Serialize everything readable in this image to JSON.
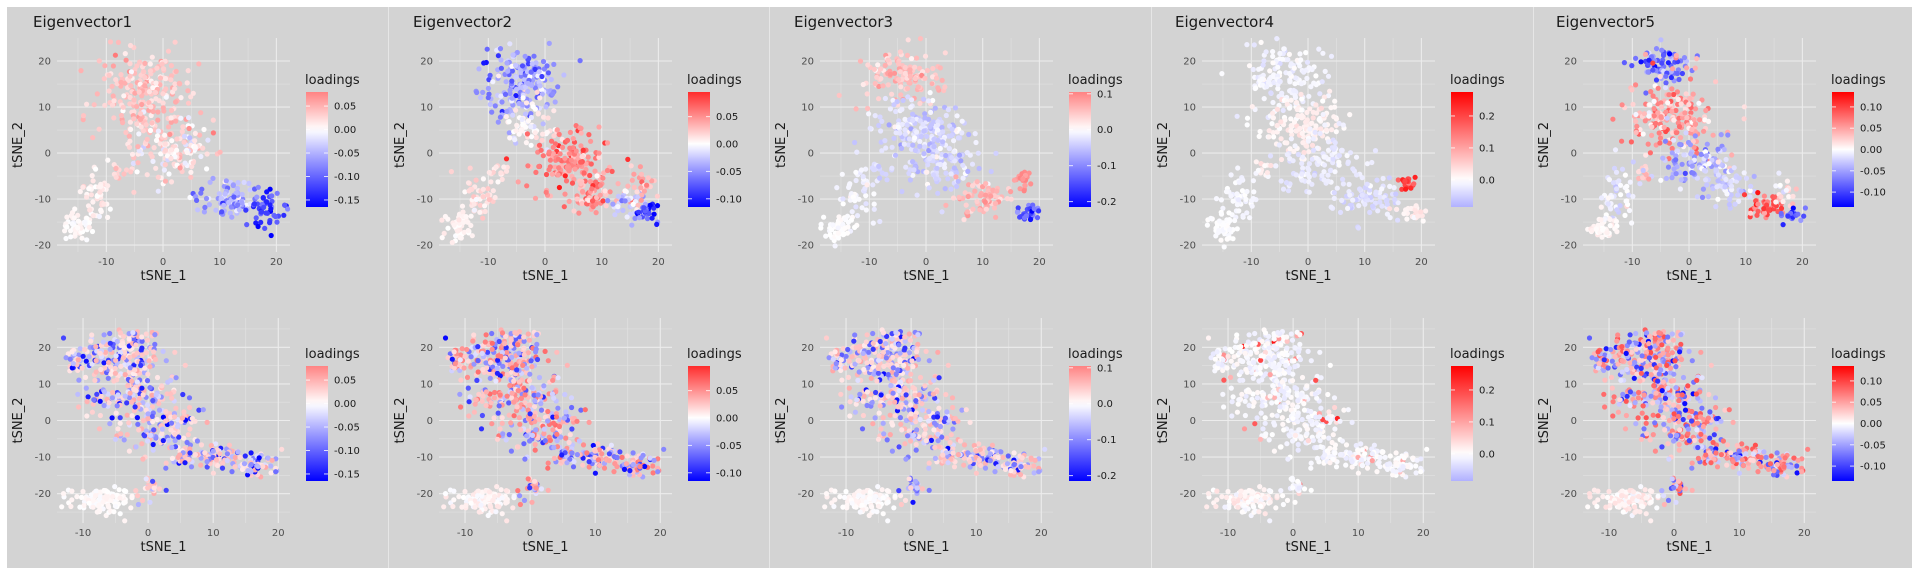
{
  "chart_data": {
    "type": "scatter",
    "layout": "2 rows x 5 columns of faceted tSNE scatter plots",
    "xlabel": "tSNE_1",
    "ylabel": "tSNE_2",
    "legend_title": "loadings",
    "legend_placement": "right",
    "grid": true,
    "color_scale": {
      "low": "#0000ff",
      "mid": "#ffffff",
      "high": "#ff0000"
    },
    "columns": [
      {
        "title": "Eigenvector1",
        "top": {
          "xlim": [
            -18.7,
            22.4
          ],
          "ylim": [
            -21.5,
            25
          ],
          "xticks": [
            -10,
            0,
            10,
            20
          ],
          "yticks": [
            -20,
            -10,
            0,
            10,
            20
          ],
          "xtick_labels": [
            "-10",
            "0",
            "10",
            "20"
          ],
          "ytick_labels": [
            "-20",
            "-10",
            "0",
            "10",
            "20"
          ],
          "legend_range": [
            -0.165,
            0.08
          ],
          "legend_breaks": [
            0.05,
            0.0,
            -0.05,
            -0.1,
            -0.15
          ],
          "legend_labels": [
            "0.05",
            "0.00",
            "-0.05",
            "-0.10",
            "-0.15"
          ],
          "clusters": [
            {
              "cx": -3,
              "cy": 13,
              "sx": 4.5,
              "sy": 5,
              "n": 230,
              "loading": 0.035,
              "spread": 0.015
            },
            {
              "cx": 2,
              "cy": 1,
              "sx": 3.5,
              "sy": 4,
              "n": 150,
              "loading": 0.02,
              "spread": 0.02
            },
            {
              "cx": 12,
              "cy": -10,
              "sx": 3,
              "sy": 2,
              "n": 90,
              "loading": -0.06,
              "spread": 0.03
            },
            {
              "cx": 18,
              "cy": -12,
              "sx": 1.5,
              "sy": 2,
              "n": 45,
              "loading": -0.12,
              "spread": 0.03
            },
            {
              "cx": -8,
              "cy": -4,
              "sx": 0.8,
              "sy": 1,
              "n": 12,
              "loading": 0.03,
              "spread": 0.01
            },
            {
              "cx": -12,
              "cy": -9,
              "sx": 1.5,
              "sy": 3,
              "n": 50,
              "loading": 0.01,
              "spread": 0.008
            },
            {
              "cx": -15,
              "cy": -16,
              "sx": 1.2,
              "sy": 1.5,
              "n": 50,
              "loading": 0.003,
              "spread": 0.004
            }
          ]
        },
        "bottom": {
          "xlim": [
            -14,
            21.8
          ],
          "ylim": [
            -28,
            28
          ],
          "xticks": [
            -10,
            0,
            10,
            20
          ],
          "yticks": [
            -20,
            -10,
            0,
            10,
            20
          ],
          "xtick_labels": [
            "-10",
            "0",
            "10",
            "20"
          ],
          "ytick_labels": [
            "-20",
            "-10",
            "0",
            "10",
            "20"
          ],
          "legend_range": [
            -0.165,
            0.08
          ],
          "legend_breaks": [
            0.05,
            0.0,
            -0.05,
            -0.1,
            -0.15
          ],
          "legend_labels": [
            "0.05",
            "0.00",
            "-0.05",
            "-0.10",
            "-0.15"
          ],
          "pattern": "mixed"
        }
      },
      {
        "title": "Eigenvector2",
        "top": {
          "xlim": [
            -18.7,
            22.4
          ],
          "ylim": [
            -21.5,
            25
          ],
          "xticks": [
            -10,
            0,
            10,
            20
          ],
          "yticks": [
            -20,
            -10,
            0,
            10,
            20
          ],
          "xtick_labels": [
            "-10",
            "0",
            "10",
            "20"
          ],
          "ytick_labels": [
            "-20",
            "-10",
            "0",
            "10",
            "20"
          ],
          "legend_range": [
            -0.115,
            0.095
          ],
          "legend_breaks": [
            0.05,
            0.0,
            -0.05,
            -0.1
          ],
          "legend_labels": [
            "0.05",
            "0.00",
            "-0.05",
            "-0.10"
          ],
          "clusters": [
            {
              "cx": -4,
              "cy": 15,
              "sx": 3.5,
              "sy": 4,
              "n": 200,
              "loading": -0.04,
              "spread": 0.025
            },
            {
              "cx": -3,
              "cy": 5,
              "sx": 3,
              "sy": 2.5,
              "n": 60,
              "loading": 0.005,
              "spread": 0.01
            },
            {
              "cx": 4,
              "cy": -2,
              "sx": 3.5,
              "sy": 3.5,
              "n": 160,
              "loading": 0.055,
              "spread": 0.02
            },
            {
              "cx": 9,
              "cy": -9,
              "sx": 2.5,
              "sy": 2.5,
              "n": 60,
              "loading": 0.045,
              "spread": 0.02
            },
            {
              "cx": 14,
              "cy": -11,
              "sx": 1.5,
              "sy": 1.5,
              "n": 35,
              "loading": -0.02,
              "spread": 0.02
            },
            {
              "cx": 17,
              "cy": -7,
              "sx": 1,
              "sy": 2,
              "n": 25,
              "loading": 0.03,
              "spread": 0.015
            },
            {
              "cx": 18,
              "cy": -13,
              "sx": 1.2,
              "sy": 1,
              "n": 30,
              "loading": -0.08,
              "spread": 0.025
            },
            {
              "cx": -8,
              "cy": -4,
              "sx": 0.8,
              "sy": 1,
              "n": 12,
              "loading": 0.01,
              "spread": 0.008
            },
            {
              "cx": -12,
              "cy": -9,
              "sx": 1.5,
              "sy": 3,
              "n": 50,
              "loading": 0.012,
              "spread": 0.008
            },
            {
              "cx": -15,
              "cy": -16,
              "sx": 1.2,
              "sy": 1.5,
              "n": 50,
              "loading": 0.005,
              "spread": 0.004
            }
          ]
        },
        "bottom": {
          "xlim": [
            -14,
            21.8
          ],
          "ylim": [
            -28,
            28
          ],
          "xticks": [
            -10,
            0,
            10,
            20
          ],
          "yticks": [
            -20,
            -10,
            0,
            10,
            20
          ],
          "xtick_labels": [
            "-10",
            "0",
            "10",
            "20"
          ],
          "ytick_labels": [
            "-20",
            "-10",
            "0",
            "10",
            "20"
          ],
          "legend_range": [
            -0.115,
            0.095
          ],
          "legend_breaks": [
            0.05,
            0.0,
            -0.05,
            -0.1
          ],
          "legend_labels": [
            "0.05",
            "0.00",
            "-0.05",
            "-0.10"
          ],
          "pattern": "mixed"
        }
      },
      {
        "title": "Eigenvector3",
        "top": {
          "xlim": [
            -18.7,
            22.4
          ],
          "ylim": [
            -21.5,
            25
          ],
          "xticks": [
            -10,
            0,
            10,
            20
          ],
          "yticks": [
            -20,
            -10,
            0,
            10,
            20
          ],
          "xtick_labels": [
            "-10",
            "0",
            "10",
            "20"
          ],
          "ytick_labels": [
            "-20",
            "-10",
            "0",
            "10",
            "20"
          ],
          "legend_range": [
            -0.215,
            0.105
          ],
          "legend_breaks": [
            0.1,
            0.0,
            -0.1,
            -0.2
          ],
          "legend_labels": [
            "0.1",
            "0.0",
            "-0.1",
            "-0.2"
          ],
          "clusters": [
            {
              "cx": -4,
              "cy": 17,
              "sx": 3.5,
              "sy": 3,
              "n": 130,
              "loading": 0.05,
              "spread": 0.02
            },
            {
              "cx": -2,
              "cy": 6,
              "sx": 4,
              "sy": 3,
              "n": 150,
              "loading": -0.03,
              "spread": 0.02
            },
            {
              "cx": 2,
              "cy": -2,
              "sx": 3.5,
              "sy": 3.5,
              "n": 130,
              "loading": -0.035,
              "spread": 0.02
            },
            {
              "cx": 10,
              "cy": -10,
              "sx": 2.5,
              "sy": 2,
              "n": 70,
              "loading": 0.06,
              "spread": 0.02
            },
            {
              "cx": 17,
              "cy": -6,
              "sx": 0.8,
              "sy": 1.2,
              "n": 20,
              "loading": 0.09,
              "spread": 0.01
            },
            {
              "cx": 18,
              "cy": -13,
              "sx": 1.2,
              "sy": 1,
              "n": 30,
              "loading": -0.13,
              "spread": 0.04
            },
            {
              "cx": -8,
              "cy": -4,
              "sx": 0.8,
              "sy": 1,
              "n": 12,
              "loading": -0.03,
              "spread": 0.01
            },
            {
              "cx": -12,
              "cy": -9,
              "sx": 1.5,
              "sy": 3,
              "n": 50,
              "loading": -0.01,
              "spread": 0.01
            },
            {
              "cx": -15,
              "cy": -16,
              "sx": 1.2,
              "sy": 1.5,
              "n": 50,
              "loading": 0.0,
              "spread": 0.004
            }
          ]
        },
        "bottom": {
          "xlim": [
            -14,
            21.8
          ],
          "ylim": [
            -28,
            28
          ],
          "xticks": [
            -10,
            0,
            10,
            20
          ],
          "yticks": [
            -20,
            -10,
            0,
            10,
            20
          ],
          "xtick_labels": [
            "-10",
            "0",
            "10",
            "20"
          ],
          "ytick_labels": [
            "-20",
            "-10",
            "0",
            "10",
            "20"
          ],
          "legend_range": [
            -0.215,
            0.105
          ],
          "legend_breaks": [
            0.1,
            0.0,
            -0.1,
            -0.2
          ],
          "legend_labels": [
            "0.1",
            "0.0",
            "-0.1",
            "-0.2"
          ],
          "pattern": "mixed"
        }
      },
      {
        "title": "Eigenvector4",
        "top": {
          "xlim": [
            -18.7,
            22.4
          ],
          "ylim": [
            -21.5,
            25
          ],
          "xticks": [
            -10,
            0,
            10,
            20
          ],
          "yticks": [
            -20,
            -10,
            0,
            10,
            20
          ],
          "xtick_labels": [
            "-10",
            "0",
            "10",
            "20"
          ],
          "ytick_labels": [
            "-20",
            "-10",
            "0",
            "10",
            "20"
          ],
          "legend_range": [
            -0.085,
            0.275
          ],
          "legend_breaks": [
            0.2,
            0.1,
            0.0
          ],
          "legend_labels": [
            "0.2",
            "0.1",
            "0.0"
          ],
          "clusters": [
            {
              "cx": -4,
              "cy": 16,
              "sx": 3.5,
              "sy": 4,
              "n": 160,
              "loading": -0.01,
              "spread": 0.01
            },
            {
              "cx": -1,
              "cy": 6,
              "sx": 4,
              "sy": 3,
              "n": 130,
              "loading": 0.015,
              "spread": 0.01
            },
            {
              "cx": 2,
              "cy": -2,
              "sx": 3.5,
              "sy": 3.5,
              "n": 120,
              "loading": -0.02,
              "spread": 0.01
            },
            {
              "cx": 11,
              "cy": -10,
              "sx": 3,
              "sy": 2,
              "n": 80,
              "loading": -0.035,
              "spread": 0.015
            },
            {
              "cx": 17.5,
              "cy": -6.5,
              "sx": 0.8,
              "sy": 1,
              "n": 20,
              "loading": 0.2,
              "spread": 0.04
            },
            {
              "cx": 18.5,
              "cy": -13,
              "sx": 1.2,
              "sy": 1,
              "n": 25,
              "loading": 0.02,
              "spread": 0.01
            },
            {
              "cx": -8,
              "cy": -4,
              "sx": 0.8,
              "sy": 1,
              "n": 12,
              "loading": 0.02,
              "spread": 0.01
            },
            {
              "cx": -12,
              "cy": -9,
              "sx": 1.5,
              "sy": 3,
              "n": 50,
              "loading": -0.008,
              "spread": 0.006
            },
            {
              "cx": -15,
              "cy": -16,
              "sx": 1.2,
              "sy": 1.5,
              "n": 50,
              "loading": -0.003,
              "spread": 0.004
            }
          ]
        },
        "bottom": {
          "xlim": [
            -14,
            21.8
          ],
          "ylim": [
            -28,
            28
          ],
          "xticks": [
            -10,
            0,
            10,
            20
          ],
          "yticks": [
            -20,
            -10,
            0,
            10,
            20
          ],
          "xtick_labels": [
            "-10",
            "0",
            "10",
            "20"
          ],
          "ytick_labels": [
            "-20",
            "-10",
            "0",
            "10",
            "20"
          ],
          "legend_range": [
            -0.085,
            0.275
          ],
          "legend_breaks": [
            0.2,
            0.1,
            0.0
          ],
          "legend_labels": [
            "0.2",
            "0.1",
            "0.0"
          ],
          "pattern": "sparse-red"
        }
      },
      {
        "title": "Eigenvector5",
        "top": {
          "xlim": [
            -18.7,
            22.4
          ],
          "ylim": [
            -21.5,
            25
          ],
          "xticks": [
            -10,
            0,
            10,
            20
          ],
          "yticks": [
            -20,
            -10,
            0,
            10,
            20
          ],
          "xtick_labels": [
            "-10",
            "0",
            "10",
            "20"
          ],
          "ytick_labels": [
            "-20",
            "-10",
            "0",
            "10",
            "20"
          ],
          "legend_range": [
            -0.135,
            0.135
          ],
          "legend_breaks": [
            0.1,
            0.05,
            0.0,
            -0.05,
            -0.1
          ],
          "legend_labels": [
            "0.10",
            "0.05",
            "0.00",
            "-0.05",
            "-0.10"
          ],
          "clusters": [
            {
              "cx": -5,
              "cy": 19,
              "sx": 2.5,
              "sy": 2,
              "n": 80,
              "loading": -0.07,
              "spread": 0.03
            },
            {
              "cx": -3,
              "cy": 8,
              "sx": 4,
              "sy": 4,
              "n": 200,
              "loading": 0.045,
              "spread": 0.025
            },
            {
              "cx": 2,
              "cy": -3,
              "sx": 3,
              "sy": 2.5,
              "n": 120,
              "loading": -0.04,
              "spread": 0.025
            },
            {
              "cx": 8,
              "cy": -8,
              "sx": 2,
              "sy": 2,
              "n": 40,
              "loading": -0.02,
              "spread": 0.015
            },
            {
              "cx": 13.5,
              "cy": -12,
              "sx": 1.5,
              "sy": 1.2,
              "n": 50,
              "loading": 0.085,
              "spread": 0.02
            },
            {
              "cx": 17,
              "cy": -8,
              "sx": 1,
              "sy": 2,
              "n": 20,
              "loading": 0.01,
              "spread": 0.02
            },
            {
              "cx": 18.5,
              "cy": -13.5,
              "sx": 1,
              "sy": 0.8,
              "n": 20,
              "loading": -0.1,
              "spread": 0.02
            },
            {
              "cx": -8,
              "cy": -4,
              "sx": 0.8,
              "sy": 1,
              "n": 12,
              "loading": 0.03,
              "spread": 0.01
            },
            {
              "cx": -12,
              "cy": -9,
              "sx": 1.5,
              "sy": 3,
              "n": 50,
              "loading": -0.01,
              "spread": 0.01
            },
            {
              "cx": -15,
              "cy": -16,
              "sx": 1.2,
              "sy": 1.5,
              "n": 50,
              "loading": 0.004,
              "spread": 0.004
            }
          ]
        },
        "bottom": {
          "xlim": [
            -14,
            21.8
          ],
          "ylim": [
            -28,
            28
          ],
          "xticks": [
            -10,
            0,
            10,
            20
          ],
          "yticks": [
            -20,
            -10,
            0,
            10,
            20
          ],
          "xtick_labels": [
            "-10",
            "0",
            "10",
            "20"
          ],
          "ytick_labels": [
            "-20",
            "-10",
            "0",
            "10",
            "20"
          ],
          "legend_range": [
            -0.135,
            0.135
          ],
          "legend_breaks": [
            0.1,
            0.05,
            0.0,
            -0.05,
            -0.1
          ],
          "legend_labels": [
            "0.10",
            "0.05",
            "0.00",
            "-0.05",
            "-0.10"
          ],
          "pattern": "mixed"
        }
      }
    ]
  }
}
